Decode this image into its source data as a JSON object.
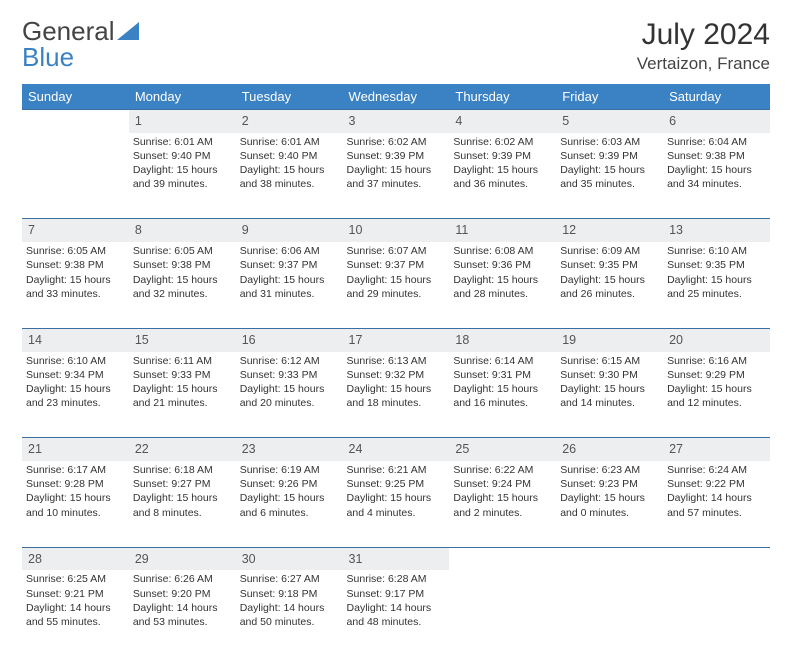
{
  "logo": {
    "text1": "General",
    "text2": "Blue"
  },
  "title": "July 2024",
  "location": "Vertaizon, France",
  "colors": {
    "header_bg": "#3b82c4",
    "header_text": "#ffffff",
    "daynum_bg": "#eceef0",
    "border": "#3b6fa0",
    "logo_accent": "#3b82c4"
  },
  "weekdays": [
    "Sunday",
    "Monday",
    "Tuesday",
    "Wednesday",
    "Thursday",
    "Friday",
    "Saturday"
  ],
  "weeks": [
    [
      null,
      {
        "n": "1",
        "sr": "6:01 AM",
        "ss": "9:40 PM",
        "dl": "15 hours and 39 minutes."
      },
      {
        "n": "2",
        "sr": "6:01 AM",
        "ss": "9:40 PM",
        "dl": "15 hours and 38 minutes."
      },
      {
        "n": "3",
        "sr": "6:02 AM",
        "ss": "9:39 PM",
        "dl": "15 hours and 37 minutes."
      },
      {
        "n": "4",
        "sr": "6:02 AM",
        "ss": "9:39 PM",
        "dl": "15 hours and 36 minutes."
      },
      {
        "n": "5",
        "sr": "6:03 AM",
        "ss": "9:39 PM",
        "dl": "15 hours and 35 minutes."
      },
      {
        "n": "6",
        "sr": "6:04 AM",
        "ss": "9:38 PM",
        "dl": "15 hours and 34 minutes."
      }
    ],
    [
      {
        "n": "7",
        "sr": "6:05 AM",
        "ss": "9:38 PM",
        "dl": "15 hours and 33 minutes."
      },
      {
        "n": "8",
        "sr": "6:05 AM",
        "ss": "9:38 PM",
        "dl": "15 hours and 32 minutes."
      },
      {
        "n": "9",
        "sr": "6:06 AM",
        "ss": "9:37 PM",
        "dl": "15 hours and 31 minutes."
      },
      {
        "n": "10",
        "sr": "6:07 AM",
        "ss": "9:37 PM",
        "dl": "15 hours and 29 minutes."
      },
      {
        "n": "11",
        "sr": "6:08 AM",
        "ss": "9:36 PM",
        "dl": "15 hours and 28 minutes."
      },
      {
        "n": "12",
        "sr": "6:09 AM",
        "ss": "9:35 PM",
        "dl": "15 hours and 26 minutes."
      },
      {
        "n": "13",
        "sr": "6:10 AM",
        "ss": "9:35 PM",
        "dl": "15 hours and 25 minutes."
      }
    ],
    [
      {
        "n": "14",
        "sr": "6:10 AM",
        "ss": "9:34 PM",
        "dl": "15 hours and 23 minutes."
      },
      {
        "n": "15",
        "sr": "6:11 AM",
        "ss": "9:33 PM",
        "dl": "15 hours and 21 minutes."
      },
      {
        "n": "16",
        "sr": "6:12 AM",
        "ss": "9:33 PM",
        "dl": "15 hours and 20 minutes."
      },
      {
        "n": "17",
        "sr": "6:13 AM",
        "ss": "9:32 PM",
        "dl": "15 hours and 18 minutes."
      },
      {
        "n": "18",
        "sr": "6:14 AM",
        "ss": "9:31 PM",
        "dl": "15 hours and 16 minutes."
      },
      {
        "n": "19",
        "sr": "6:15 AM",
        "ss": "9:30 PM",
        "dl": "15 hours and 14 minutes."
      },
      {
        "n": "20",
        "sr": "6:16 AM",
        "ss": "9:29 PM",
        "dl": "15 hours and 12 minutes."
      }
    ],
    [
      {
        "n": "21",
        "sr": "6:17 AM",
        "ss": "9:28 PM",
        "dl": "15 hours and 10 minutes."
      },
      {
        "n": "22",
        "sr": "6:18 AM",
        "ss": "9:27 PM",
        "dl": "15 hours and 8 minutes."
      },
      {
        "n": "23",
        "sr": "6:19 AM",
        "ss": "9:26 PM",
        "dl": "15 hours and 6 minutes."
      },
      {
        "n": "24",
        "sr": "6:21 AM",
        "ss": "9:25 PM",
        "dl": "15 hours and 4 minutes."
      },
      {
        "n": "25",
        "sr": "6:22 AM",
        "ss": "9:24 PM",
        "dl": "15 hours and 2 minutes."
      },
      {
        "n": "26",
        "sr": "6:23 AM",
        "ss": "9:23 PM",
        "dl": "15 hours and 0 minutes."
      },
      {
        "n": "27",
        "sr": "6:24 AM",
        "ss": "9:22 PM",
        "dl": "14 hours and 57 minutes."
      }
    ],
    [
      {
        "n": "28",
        "sr": "6:25 AM",
        "ss": "9:21 PM",
        "dl": "14 hours and 55 minutes."
      },
      {
        "n": "29",
        "sr": "6:26 AM",
        "ss": "9:20 PM",
        "dl": "14 hours and 53 minutes."
      },
      {
        "n": "30",
        "sr": "6:27 AM",
        "ss": "9:18 PM",
        "dl": "14 hours and 50 minutes."
      },
      {
        "n": "31",
        "sr": "6:28 AM",
        "ss": "9:17 PM",
        "dl": "14 hours and 48 minutes."
      },
      null,
      null,
      null
    ]
  ],
  "labels": {
    "sunrise": "Sunrise: ",
    "sunset": "Sunset: ",
    "daylight": "Daylight: "
  }
}
